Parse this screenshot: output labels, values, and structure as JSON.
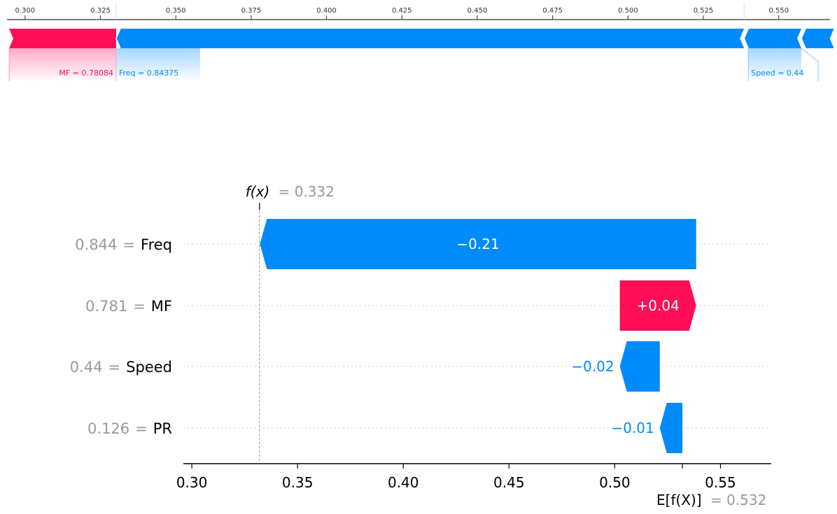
{
  "colors": {
    "positive": "#ff0d57",
    "negative": "#008bfb",
    "muted": "#999999",
    "axis": "#000000"
  },
  "chart_data": [
    {
      "type": "force",
      "xticks": [
        0.3,
        0.325,
        0.35,
        0.375,
        0.4,
        0.425,
        0.45,
        0.475,
        0.5,
        0.525,
        0.55
      ],
      "xtick_labels": [
        "0.300",
        "0.325",
        "0.350",
        "0.375",
        "0.400",
        "0.425",
        "0.450",
        "0.475",
        "0.500",
        "0.525",
        "0.550"
      ],
      "xlim": [
        0.294,
        0.567
      ],
      "segments": [
        {
          "start": 0.2947,
          "end": 0.3302,
          "direction": "positive",
          "label": "MF = 0.78084"
        },
        {
          "start": 0.3302,
          "end": 0.5385,
          "direction": "negative",
          "label": "Freq = 0.84375"
        },
        {
          "start": 0.5385,
          "end": 0.5575,
          "direction": "negative",
          "label": "Speed = 0.44"
        },
        {
          "start": 0.5575,
          "end": 0.5683,
          "direction": "negative",
          "label": ""
        }
      ],
      "label_anchor": [
        0.3302,
        0.3302,
        0.5385
      ]
    },
    {
      "type": "waterfall",
      "xlim": [
        0.296,
        0.574
      ],
      "xticks": [
        0.3,
        0.35,
        0.4,
        0.45,
        0.5,
        0.55
      ],
      "xtick_labels": [
        "0.30",
        "0.35",
        "0.40",
        "0.45",
        "0.50",
        "0.55"
      ],
      "fx": {
        "value": 0.332,
        "label": "f(x)",
        "value_text": "= 0.332"
      },
      "expected": {
        "value": 0.532,
        "label": "E[f(X)]",
        "value_text": "= 0.532"
      },
      "rows": [
        {
          "feature": "Freq",
          "feature_value": "0.844",
          "start": 0.5385,
          "end": 0.3322,
          "contribution": "−0.21",
          "sign": "negative"
        },
        {
          "feature": "MF",
          "feature_value": "0.781",
          "start": 0.5024,
          "end": 0.5385,
          "contribution": "+0.04",
          "sign": "positive"
        },
        {
          "feature": "Speed",
          "feature_value": "0.44",
          "start": 0.5213,
          "end": 0.5024,
          "contribution": "−0.02",
          "sign": "negative"
        },
        {
          "feature": "PR",
          "feature_value": "0.126",
          "start": 0.532,
          "end": 0.5213,
          "contribution": "−0.01",
          "sign": "negative"
        }
      ]
    }
  ]
}
